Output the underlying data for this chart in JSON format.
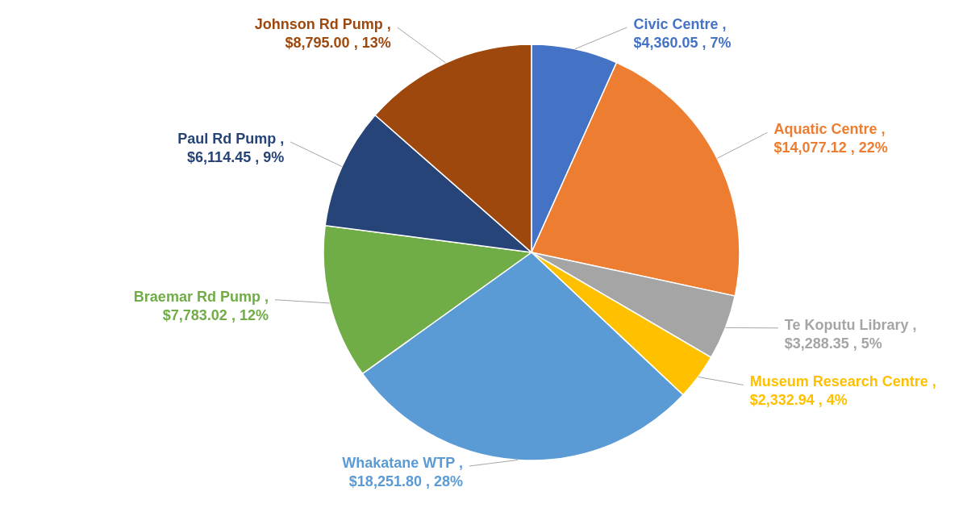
{
  "chart_data": {
    "type": "pie",
    "categories": [
      "Civic Centre",
      "Aquatic Centre",
      "Te Koputu Library",
      "Museum Research Centre",
      "Whakatane WTP",
      "Braemar Rd Pump",
      "Paul Rd Pump",
      "Johnson Rd Pump"
    ],
    "values": [
      4360.05,
      14077.12,
      3288.35,
      2332.94,
      18251.8,
      7783.02,
      6114.45,
      8795.0
    ],
    "value_labels": [
      ", $4,360.05 , 7%",
      ", $14,077.12 , 22%",
      ", $3,288.35 , 5%",
      ", $2,332.94 , 4%",
      ", $18,251.80 , 28%",
      ", $7,783.02 , 12%",
      ", $6,114.45 , 9%",
      ", $8,795.00 , 13%"
    ],
    "legend": false,
    "colors": [
      "#4472c4",
      "#ed7d31",
      "#a5a5a5",
      "#ffc000",
      "#5b9bd5",
      "#70ad47",
      "#264478",
      "#9e480e"
    ]
  }
}
